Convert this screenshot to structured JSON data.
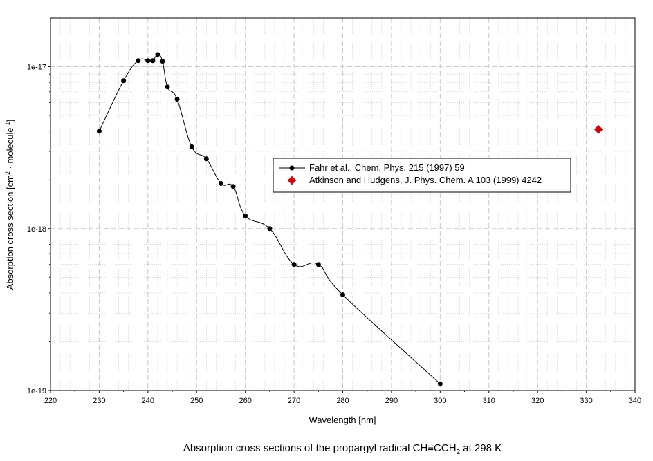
{
  "chart_data": {
    "type": "scatter",
    "caption": {
      "prefix": "Absorption cross sections of the propargyl radical CH≡CCH",
      "sub": "2",
      "suffix": " at 298 K"
    },
    "xlabel": "Wavelength [nm]",
    "ylabel": {
      "a": "Absorption cross section [cm",
      "sup1": "2",
      "b": " · molecule",
      "sup2": "-1",
      "c": "]"
    },
    "xlim": [
      220,
      340
    ],
    "ylim": [
      1e-19,
      2e-17
    ],
    "yscale": "log",
    "grid": true,
    "legend_position": "center-right",
    "xticks": [
      220,
      230,
      240,
      250,
      260,
      270,
      280,
      290,
      300,
      310,
      320,
      330,
      340
    ],
    "xtick_labels": [
      "220",
      "230",
      "240",
      "250",
      "260",
      "270",
      "280",
      "290",
      "300",
      "310",
      "320",
      "330",
      "340"
    ],
    "yticks": [
      1e-19,
      1e-18,
      1e-17
    ],
    "ytick_labels": [
      "1e-19",
      "1e-18",
      "1e-17"
    ],
    "series": [
      {
        "name": "Fahr et al., Chem. Phys. 215 (1997) 59",
        "color": "#000000",
        "marker": "circle",
        "line": true,
        "points": [
          [
            230,
            4e-18
          ],
          [
            235,
            8.2e-18
          ],
          [
            238,
            1.09e-17
          ],
          [
            240,
            1.09e-17
          ],
          [
            241,
            1.09e-17
          ],
          [
            242,
            1.19e-17
          ],
          [
            243,
            1.08e-17
          ],
          [
            244,
            7.5e-18
          ],
          [
            246,
            6.3e-18
          ],
          [
            249,
            3.2e-18
          ],
          [
            252,
            2.7e-18
          ],
          [
            255,
            1.9e-18
          ],
          [
            257.5,
            1.82e-18
          ],
          [
            260,
            1.2e-18
          ],
          [
            265,
            1e-18
          ],
          [
            270,
            6e-19
          ],
          [
            275,
            6e-19
          ],
          [
            280,
            3.9e-19
          ],
          [
            300,
            1.1e-19
          ]
        ]
      },
      {
        "name": "Atkinson and Hudgens, J. Phys. Chem. A 103 (1999) 4242",
        "color": "#e00000",
        "marker": "diamond",
        "line": false,
        "points": [
          [
            332.5,
            4.1e-18
          ]
        ]
      }
    ]
  }
}
